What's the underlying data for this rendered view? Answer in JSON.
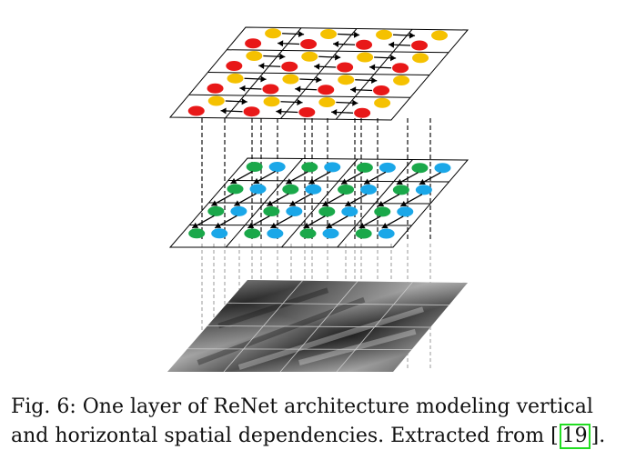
{
  "figure": {
    "layers": [
      {
        "name": "output-layer",
        "node_colors": [
          "#f5c100",
          "#e81818"
        ],
        "grid": 4
      },
      {
        "name": "hidden-layer",
        "node_colors": [
          "#1aa84a",
          "#1aa7e8"
        ],
        "grid": 4
      },
      {
        "name": "input-image-layer",
        "grid": 4
      }
    ],
    "colors": {
      "yellow": "#f5c100",
      "red": "#e81818",
      "green": "#1aa84a",
      "blue": "#1aa7e8",
      "grid_line": "#000000",
      "dashed_dark": "#222222",
      "dashed_light": "#999999"
    }
  },
  "caption": {
    "text_before": "Fig. 6: One layer of ReNet architecture modeling vertical and horizontal spatial dependencies. Extracted from [",
    "citation": "19",
    "text_after": "]."
  }
}
